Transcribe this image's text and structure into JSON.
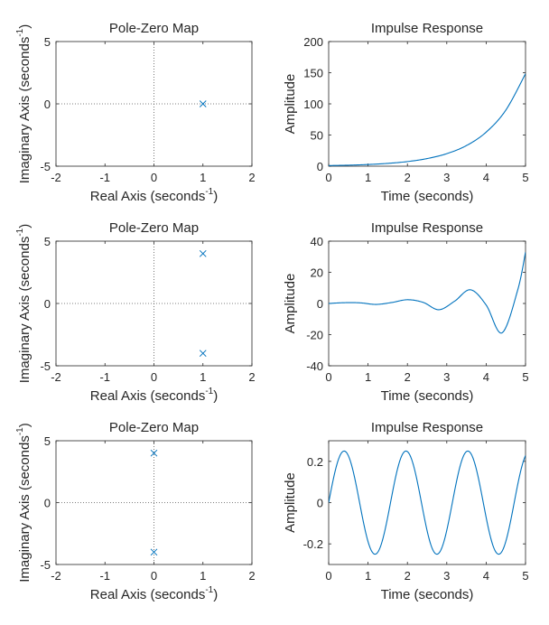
{
  "chart_data": [
    {
      "type": "scatter",
      "title": "Pole-Zero Map",
      "xlabel": "Real Axis (seconds",
      "ylabel": "Imaginary Axis (seconds",
      "label_superscript": "-1",
      "xlim": [
        -2,
        2
      ],
      "ylim": [
        -5,
        5
      ],
      "xticks": [
        "-2",
        "-1",
        "0",
        "1",
        "2"
      ],
      "yticks": [
        "5",
        "0",
        "-5"
      ],
      "marker": "x",
      "poles": [
        {
          "x": 1,
          "y": 0
        }
      ],
      "reference_lines": "dotted at x=0 and y=0",
      "color": "#0072BD"
    },
    {
      "type": "line",
      "title": "Impulse Response",
      "xlabel": "Time (seconds)",
      "ylabel": "Amplitude",
      "xlim": [
        0,
        5
      ],
      "ylim": [
        0,
        200
      ],
      "xticks": [
        "0",
        "1",
        "2",
        "3",
        "4",
        "5"
      ],
      "yticks": [
        "200",
        "150",
        "100",
        "50",
        "0"
      ],
      "x": [
        0,
        0.5,
        1,
        1.5,
        2,
        2.5,
        3,
        3.5,
        4,
        4.5,
        5
      ],
      "y": [
        1,
        1.6,
        2.7,
        4.5,
        7.4,
        12.2,
        20.1,
        33.1,
        54.6,
        90,
        148.4
      ],
      "color": "#0072BD"
    },
    {
      "type": "scatter",
      "title": "Pole-Zero Map",
      "xlabel": "Real Axis (seconds",
      "ylabel": "Imaginary Axis (seconds",
      "label_superscript": "-1",
      "xlim": [
        -2,
        2
      ],
      "ylim": [
        -5,
        5
      ],
      "xticks": [
        "-2",
        "-1",
        "0",
        "1",
        "2"
      ],
      "yticks": [
        "5",
        "0",
        "-5"
      ],
      "marker": "x",
      "poles": [
        {
          "x": 1,
          "y": 4
        },
        {
          "x": 1,
          "y": -4
        }
      ],
      "reference_lines": "dotted at x=0 and y=0",
      "color": "#0072BD"
    },
    {
      "type": "line",
      "title": "Impulse Response",
      "xlabel": "Time (seconds)",
      "ylabel": "Amplitude",
      "xlim": [
        0,
        5
      ],
      "ylim": [
        -40,
        40
      ],
      "xticks": [
        "0",
        "1",
        "2",
        "3",
        "4",
        "5"
      ],
      "yticks": [
        "40",
        "20",
        "0",
        "-20",
        "-40"
      ],
      "x": [
        0,
        0.4,
        0.8,
        1.2,
        1.6,
        2.0,
        2.4,
        2.8,
        3.2,
        3.6,
        4.0,
        4.4,
        4.8,
        5.0
      ],
      "y": [
        0,
        0.5,
        0.4,
        -0.6,
        0.6,
        2.4,
        0.7,
        -4.0,
        1.5,
        8.8,
        -1.0,
        -18.9,
        8.5,
        33
      ],
      "color": "#0072BD"
    },
    {
      "type": "scatter",
      "title": "Pole-Zero Map",
      "xlabel": "Real Axis (seconds",
      "ylabel": "Imaginary Axis (seconds",
      "label_superscript": "-1",
      "xlim": [
        -2,
        2
      ],
      "ylim": [
        -5,
        5
      ],
      "xticks": [
        "-2",
        "-1",
        "0",
        "1",
        "2"
      ],
      "yticks": [
        "5",
        "0",
        "-5"
      ],
      "marker": "x",
      "poles": [
        {
          "x": 0,
          "y": 4
        },
        {
          "x": 0,
          "y": -4
        }
      ],
      "reference_lines": "dotted at x=0 and y=0",
      "color": "#0072BD"
    },
    {
      "type": "line",
      "title": "Impulse Response",
      "xlabel": "Time (seconds)",
      "ylabel": "Amplitude",
      "xlim": [
        0,
        5
      ],
      "ylim": [
        -0.3,
        0.3
      ],
      "xticks": [
        "0",
        "1",
        "2",
        "3",
        "4",
        "5"
      ],
      "yticks": [
        "0.2",
        "0",
        "-0.2"
      ],
      "function": "0.25*sin(4t)",
      "amplitude": 0.25,
      "omega": 4,
      "color": "#0072BD"
    }
  ]
}
